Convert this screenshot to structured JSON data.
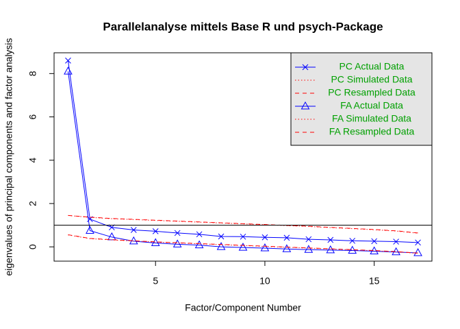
{
  "chart_data": {
    "type": "line",
    "title": "Parallelanalyse mittels Base R und psych-Package",
    "xlabel": "Factor/Component Number",
    "ylabel": "eigenvalues of principal components and factor analysis",
    "x": [
      1,
      2,
      3,
      4,
      5,
      6,
      7,
      8,
      9,
      10,
      11,
      12,
      13,
      14,
      15,
      16,
      17
    ],
    "series": [
      {
        "name": "PC  Actual Data",
        "color": "#0000ff",
        "linestyle": "solid",
        "marker": "x",
        "values": [
          8.6,
          1.28,
          0.9,
          0.78,
          0.72,
          0.64,
          0.58,
          0.48,
          0.47,
          0.44,
          0.42,
          0.35,
          0.32,
          0.28,
          0.26,
          0.24,
          0.2
        ]
      },
      {
        "name": "PC  Simulated Data",
        "color": "#ff0000",
        "linestyle": "dotted",
        "marker": "none",
        "values": [
          1.45,
          1.36,
          1.3,
          1.26,
          1.22,
          1.18,
          1.14,
          1.1,
          1.06,
          1.02,
          0.98,
          0.94,
          0.89,
          0.84,
          0.79,
          0.73,
          0.63
        ]
      },
      {
        "name": "PC  Resampled Data",
        "color": "#ff0000",
        "linestyle": "dashed",
        "marker": "none",
        "values": [
          1.45,
          1.37,
          1.31,
          1.27,
          1.23,
          1.19,
          1.15,
          1.11,
          1.07,
          1.03,
          0.99,
          0.95,
          0.9,
          0.85,
          0.8,
          0.74,
          0.64
        ]
      },
      {
        "name": "FA  Actual Data",
        "color": "#0000ff",
        "linestyle": "solid",
        "marker": "triangle",
        "values": [
          8.1,
          0.75,
          0.45,
          0.26,
          0.18,
          0.12,
          0.08,
          0.0,
          -0.03,
          -0.06,
          -0.1,
          -0.13,
          -0.15,
          -0.17,
          -0.2,
          -0.24,
          -0.28
        ]
      },
      {
        "name": "FA  Simulated Data",
        "color": "#ff0000",
        "linestyle": "dotted",
        "marker": "none",
        "values": [
          0.55,
          0.38,
          0.32,
          0.27,
          0.22,
          0.18,
          0.14,
          0.1,
          0.06,
          0.02,
          -0.02,
          -0.06,
          -0.1,
          -0.14,
          -0.18,
          -0.23,
          -0.3
        ]
      },
      {
        "name": "FA  Resampled Data",
        "color": "#ff0000",
        "linestyle": "dashed",
        "marker": "none",
        "values": [
          0.56,
          0.39,
          0.33,
          0.28,
          0.23,
          0.19,
          0.15,
          0.11,
          0.07,
          0.03,
          -0.01,
          -0.05,
          -0.09,
          -0.13,
          -0.17,
          -0.22,
          -0.29
        ]
      }
    ],
    "hline": 1,
    "legend_position": "top-right",
    "legend_text_color": "#00a000",
    "xlim": [
      0.36,
      17.64
    ],
    "xticks": [
      5,
      10,
      15
    ],
    "ylim": [
      -0.66,
      8.96
    ],
    "yticks": [
      0,
      2,
      4,
      6,
      8
    ],
    "grid": false
  }
}
